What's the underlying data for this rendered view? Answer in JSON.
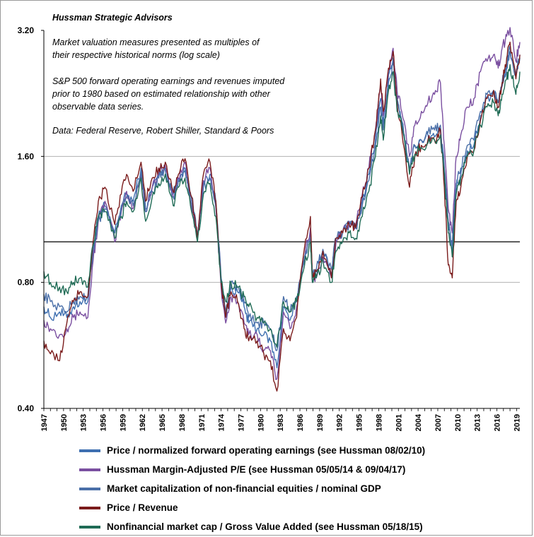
{
  "chart_data": {
    "type": "line",
    "title": "Hussman Strategic Advisors",
    "notes": [
      "Market valuation measures presented as multiples of",
      "their respective historical norms (log scale)",
      "",
      "S&P 500 forward operating earnings and revenues imputed",
      "prior to 1980 based on estimated relationship with other",
      "observable data series.",
      "",
      "Data: Federal Reserve, Robert Shiller, Standard & Poors"
    ],
    "y_scale": "log",
    "ylim": [
      0.4,
      3.2
    ],
    "y_ticks": [
      "3.20",
      "1.60",
      "0.80",
      "0.40"
    ],
    "y_tick_values": [
      3.2,
      1.6,
      0.8,
      0.4
    ],
    "xlim": [
      1947,
      2019.5
    ],
    "x_ticks": [
      "1947",
      "1950",
      "1953",
      "1956",
      "1959",
      "1962",
      "1965",
      "1968",
      "1971",
      "1974",
      "1977",
      "1980",
      "1983",
      "1986",
      "1989",
      "1992",
      "1995",
      "1998",
      "2001",
      "2004",
      "2007",
      "2010",
      "2013",
      "2016",
      "2019"
    ],
    "x_tick_values": [
      1947,
      1950,
      1953,
      1956,
      1959,
      1962,
      1965,
      1968,
      1971,
      1974,
      1977,
      1980,
      1983,
      1986,
      1989,
      1992,
      1995,
      1998,
      2001,
      2004,
      2007,
      2010,
      2013,
      2016,
      2019
    ],
    "reference_line": 1.0,
    "grid": "horizontal",
    "legend_position": "bottom",
    "series": [
      {
        "name": "Price / normalized forward operating earnings (see Hussman 08/02/10)",
        "color": "#3e6fb0",
        "x": [
          1947.0,
          1948.0,
          1949.4,
          1950.5,
          1951.5,
          1952.5,
          1953.7,
          1954.5,
          1955.3,
          1956.3,
          1957.8,
          1958.8,
          1959.6,
          1960.6,
          1961.8,
          1962.5,
          1963.5,
          1964.5,
          1965.5,
          1966.7,
          1967.5,
          1968.5,
          1969.5,
          1970.4,
          1971.3,
          1972.3,
          1973.2,
          1974.0,
          1974.7,
          1975.5,
          1976.5,
          1977.5,
          1978.2,
          1979.5,
          1980.5,
          1981.5,
          1982.5,
          1983.5,
          1984.5,
          1985.5,
          1986.5,
          1987.6,
          1987.9,
          1988.5,
          1989.5,
          1990.8,
          1991.5,
          1992.5,
          1993.5,
          1994.5,
          1995.5,
          1996.5,
          1997.5,
          1998.3,
          1998.7,
          1999.5,
          2000.2,
          2000.8,
          2001.5,
          2002.7,
          2003.5,
          2004.5,
          2005.5,
          2006.5,
          2007.4,
          2008.0,
          2008.6,
          2009.2,
          2009.8,
          2010.5,
          2011.5,
          2012.5,
          2013.5,
          2014.5,
          2015.5,
          2016.2,
          2016.8,
          2017.5,
          2018.0,
          2018.9,
          2019.5
        ],
        "values": [
          0.7,
          0.66,
          0.68,
          0.66,
          0.7,
          0.72,
          0.72,
          0.95,
          1.15,
          1.22,
          1.05,
          1.22,
          1.3,
          1.25,
          1.5,
          1.2,
          1.35,
          1.45,
          1.5,
          1.3,
          1.42,
          1.5,
          1.28,
          1.05,
          1.38,
          1.45,
          1.25,
          0.82,
          0.66,
          0.78,
          0.76,
          0.7,
          0.64,
          0.62,
          0.6,
          0.58,
          0.5,
          0.7,
          0.65,
          0.72,
          0.88,
          1.05,
          0.82,
          0.85,
          0.95,
          0.84,
          1.02,
          1.05,
          1.1,
          1.08,
          1.25,
          1.45,
          1.75,
          2.2,
          1.9,
          2.5,
          2.75,
          2.2,
          1.95,
          1.5,
          1.7,
          1.75,
          1.8,
          1.78,
          1.85,
          1.5,
          1.1,
          0.95,
          1.35,
          1.45,
          1.65,
          1.7,
          2.0,
          2.2,
          2.3,
          2.15,
          2.35,
          2.6,
          2.85,
          2.5,
          2.75
        ]
      },
      {
        "name": "Hussman Margin-Adjusted P/E (see Hussman 05/05/14 & 09/04/17)",
        "color": "#7a4fa0",
        "x": [
          1947.0,
          1948.0,
          1949.4,
          1950.5,
          1951.5,
          1952.5,
          1953.7,
          1954.5,
          1955.3,
          1956.3,
          1957.8,
          1958.8,
          1959.6,
          1960.6,
          1961.8,
          1962.5,
          1963.5,
          1964.5,
          1965.5,
          1966.7,
          1967.5,
          1968.5,
          1969.5,
          1970.4,
          1971.3,
          1972.3,
          1973.2,
          1974.0,
          1974.7,
          1975.5,
          1976.5,
          1977.5,
          1978.2,
          1979.5,
          1980.5,
          1981.5,
          1982.5,
          1983.5,
          1984.5,
          1985.5,
          1986.5,
          1987.6,
          1987.9,
          1988.5,
          1989.5,
          1990.8,
          1991.5,
          1992.5,
          1993.5,
          1994.5,
          1995.5,
          1996.5,
          1997.5,
          1998.3,
          1998.7,
          1999.5,
          2000.2,
          2000.8,
          2001.5,
          2002.7,
          2003.5,
          2004.5,
          2005.5,
          2006.5,
          2007.4,
          2008.0,
          2008.6,
          2009.2,
          2009.8,
          2010.5,
          2011.5,
          2012.5,
          2013.5,
          2014.5,
          2015.5,
          2016.2,
          2016.8,
          2017.5,
          2018.0,
          2018.9,
          2019.5
        ],
        "values": [
          0.65,
          0.62,
          0.6,
          0.62,
          0.66,
          0.68,
          0.66,
          0.9,
          1.12,
          1.25,
          1.0,
          1.18,
          1.32,
          1.2,
          1.45,
          1.18,
          1.35,
          1.45,
          1.52,
          1.28,
          1.42,
          1.55,
          1.2,
          1.02,
          1.4,
          1.5,
          1.2,
          0.78,
          0.64,
          0.74,
          0.72,
          0.64,
          0.6,
          0.6,
          0.55,
          0.55,
          0.47,
          0.68,
          0.62,
          0.7,
          0.9,
          1.08,
          0.8,
          0.82,
          0.92,
          0.82,
          1.0,
          1.05,
          1.12,
          1.1,
          1.3,
          1.5,
          1.85,
          2.35,
          2.0,
          2.6,
          2.9,
          2.3,
          2.05,
          1.6,
          1.9,
          2.05,
          2.15,
          2.25,
          2.4,
          1.7,
          1.2,
          1.05,
          1.6,
          1.8,
          2.1,
          2.2,
          2.55,
          2.7,
          2.8,
          2.6,
          2.9,
          3.1,
          3.25,
          2.7,
          3.0
        ]
      },
      {
        "name": "Market capitalization of non-financial equities / nominal GDP",
        "color": "#4a6fa8",
        "x": [
          1947.0,
          1948.0,
          1949.4,
          1950.5,
          1951.5,
          1952.5,
          1953.7,
          1954.5,
          1955.3,
          1956.3,
          1957.8,
          1958.8,
          1959.6,
          1960.6,
          1961.8,
          1962.5,
          1963.5,
          1964.5,
          1965.5,
          1966.7,
          1967.5,
          1968.5,
          1969.5,
          1970.4,
          1971.3,
          1972.3,
          1973.2,
          1974.0,
          1974.7,
          1975.5,
          1976.5,
          1977.5,
          1978.2,
          1979.5,
          1980.5,
          1981.5,
          1982.5,
          1983.5,
          1984.5,
          1985.5,
          1986.5,
          1987.6,
          1987.9,
          1988.5,
          1989.5,
          1990.8,
          1991.5,
          1992.5,
          1993.5,
          1994.5,
          1995.5,
          1996.5,
          1997.5,
          1998.3,
          1998.7,
          1999.5,
          2000.2,
          2000.8,
          2001.5,
          2002.7,
          2003.5,
          2004.5,
          2005.5,
          2006.5,
          2007.4,
          2008.0,
          2008.6,
          2009.2,
          2009.8,
          2010.5,
          2011.5,
          2012.5,
          2013.5,
          2014.5,
          2015.5,
          2016.2,
          2016.8,
          2017.5,
          2018.0,
          2018.9,
          2019.5
        ],
        "values": [
          0.75,
          0.72,
          0.7,
          0.68,
          0.72,
          0.74,
          0.74,
          0.95,
          1.12,
          1.2,
          1.05,
          1.2,
          1.28,
          1.22,
          1.48,
          1.18,
          1.32,
          1.42,
          1.48,
          1.28,
          1.4,
          1.48,
          1.25,
          1.04,
          1.35,
          1.42,
          1.22,
          0.82,
          0.68,
          0.8,
          0.78,
          0.72,
          0.66,
          0.64,
          0.64,
          0.62,
          0.55,
          0.74,
          0.68,
          0.74,
          0.88,
          1.02,
          0.84,
          0.86,
          0.96,
          0.86,
          1.02,
          1.05,
          1.1,
          1.08,
          1.22,
          1.4,
          1.7,
          2.1,
          1.85,
          2.4,
          2.65,
          2.15,
          1.95,
          1.5,
          1.7,
          1.75,
          1.82,
          1.85,
          1.9,
          1.5,
          1.12,
          0.98,
          1.38,
          1.5,
          1.7,
          1.75,
          2.05,
          2.25,
          2.3,
          2.15,
          2.4,
          2.65,
          2.9,
          2.5,
          2.8
        ]
      },
      {
        "name": "Price / Revenue",
        "color": "#7b1c1c",
        "x": [
          1947.0,
          1948.0,
          1949.4,
          1950.5,
          1951.5,
          1952.5,
          1953.7,
          1954.5,
          1955.3,
          1956.3,
          1957.8,
          1958.8,
          1959.6,
          1960.6,
          1961.8,
          1962.5,
          1963.5,
          1964.5,
          1965.5,
          1966.7,
          1967.5,
          1968.5,
          1969.5,
          1970.4,
          1971.3,
          1972.3,
          1973.2,
          1974.0,
          1974.7,
          1975.5,
          1976.5,
          1977.5,
          1978.2,
          1979.5,
          1980.5,
          1981.5,
          1982.5,
          1983.5,
          1984.5,
          1985.5,
          1986.5,
          1987.6,
          1987.9,
          1988.5,
          1989.5,
          1990.8,
          1991.5,
          1992.5,
          1993.5,
          1994.5,
          1995.5,
          1996.5,
          1997.5,
          1998.3,
          1998.7,
          1999.5,
          2000.2,
          2000.8,
          2001.5,
          2002.7,
          2003.5,
          2004.5,
          2005.5,
          2006.5,
          2007.4,
          2008.0,
          2008.6,
          2009.2,
          2009.8,
          2010.5,
          2011.5,
          2012.5,
          2013.5,
          2014.5,
          2015.5,
          2016.2,
          2016.8,
          2017.5,
          2018.0,
          2018.9,
          2019.5
        ],
        "values": [
          0.58,
          0.54,
          0.52,
          0.64,
          0.72,
          0.76,
          0.74,
          1.0,
          1.25,
          1.35,
          1.1,
          1.3,
          1.45,
          1.32,
          1.55,
          1.25,
          1.42,
          1.5,
          1.55,
          1.32,
          1.45,
          1.58,
          1.28,
          1.02,
          1.45,
          1.55,
          1.25,
          0.8,
          0.66,
          0.76,
          0.72,
          0.62,
          0.58,
          0.58,
          0.54,
          0.52,
          0.44,
          0.62,
          0.58,
          0.66,
          0.92,
          1.15,
          0.82,
          0.85,
          0.95,
          0.82,
          1.02,
          1.05,
          1.1,
          1.08,
          1.28,
          1.5,
          1.85,
          2.45,
          2.05,
          2.6,
          2.85,
          2.15,
          1.85,
          1.35,
          1.6,
          1.7,
          1.75,
          1.75,
          1.85,
          1.35,
          0.88,
          0.82,
          1.25,
          1.35,
          1.6,
          1.65,
          1.95,
          2.2,
          2.3,
          2.1,
          2.4,
          2.75,
          3.0,
          2.45,
          2.8
        ]
      },
      {
        "name": "Nonfinancial market cap / Gross Value Added (see Hussman 05/18/15)",
        "color": "#1f6b55",
        "x": [
          1947.0,
          1948.0,
          1949.4,
          1950.5,
          1951.5,
          1952.5,
          1953.7,
          1954.5,
          1955.3,
          1956.3,
          1957.8,
          1958.8,
          1959.6,
          1960.6,
          1961.8,
          1962.5,
          1963.5,
          1964.5,
          1965.5,
          1966.7,
          1967.5,
          1968.5,
          1969.5,
          1970.4,
          1971.3,
          1972.3,
          1973.2,
          1974.0,
          1974.7,
          1975.5,
          1976.5,
          1977.5,
          1978.2,
          1979.5,
          1980.5,
          1981.5,
          1982.5,
          1983.5,
          1984.5,
          1985.5,
          1986.5,
          1987.6,
          1987.9,
          1988.5,
          1989.5,
          1990.8,
          1991.5,
          1992.5,
          1993.5,
          1994.5,
          1995.5,
          1996.5,
          1997.5,
          1998.3,
          1998.7,
          1999.5,
          2000.2,
          2000.8,
          2001.5,
          2002.7,
          2003.5,
          2004.5,
          2005.5,
          2006.5,
          2007.4,
          2008.0,
          2008.6,
          2009.2,
          2009.8,
          2010.5,
          2011.5,
          2012.5,
          2013.5,
          2014.5,
          2015.5,
          2016.2,
          2016.8,
          2017.5,
          2018.0,
          2018.9,
          2019.5
        ],
        "values": [
          0.85,
          0.8,
          0.78,
          0.76,
          0.8,
          0.82,
          0.78,
          0.98,
          1.15,
          1.18,
          1.02,
          1.15,
          1.25,
          1.18,
          1.42,
          1.12,
          1.28,
          1.38,
          1.45,
          1.22,
          1.35,
          1.42,
          1.18,
          1.0,
          1.3,
          1.38,
          1.15,
          0.8,
          0.72,
          0.8,
          0.78,
          0.74,
          0.7,
          0.66,
          0.64,
          0.62,
          0.56,
          0.72,
          0.68,
          0.72,
          0.85,
          1.0,
          0.8,
          0.82,
          0.9,
          0.8,
          0.95,
          1.0,
          1.05,
          1.02,
          1.15,
          1.32,
          1.6,
          2.0,
          1.75,
          2.3,
          2.55,
          2.05,
          1.9,
          1.45,
          1.62,
          1.68,
          1.72,
          1.75,
          1.8,
          1.45,
          1.05,
          0.92,
          1.3,
          1.42,
          1.6,
          1.65,
          1.9,
          2.1,
          2.15,
          2.0,
          2.25,
          2.45,
          2.65,
          2.25,
          2.55
        ]
      }
    ]
  }
}
